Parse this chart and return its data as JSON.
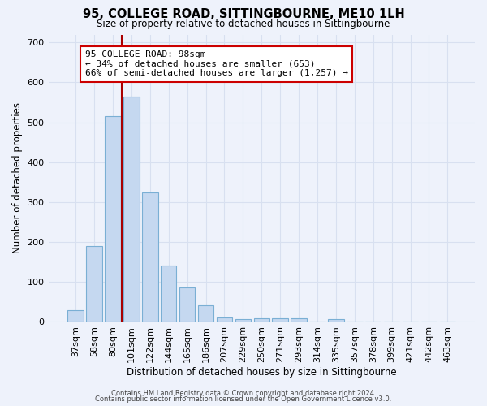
{
  "title": "95, COLLEGE ROAD, SITTINGBOURNE, ME10 1LH",
  "subtitle": "Size of property relative to detached houses in Sittingbourne",
  "xlabel": "Distribution of detached houses by size in Sittingbourne",
  "ylabel": "Number of detached properties",
  "bins": [
    "37sqm",
    "58sqm",
    "80sqm",
    "101sqm",
    "122sqm",
    "144sqm",
    "165sqm",
    "186sqm",
    "207sqm",
    "229sqm",
    "250sqm",
    "271sqm",
    "293sqm",
    "314sqm",
    "335sqm",
    "357sqm",
    "378sqm",
    "399sqm",
    "421sqm",
    "442sqm",
    "463sqm"
  ],
  "values": [
    30,
    190,
    515,
    565,
    325,
    142,
    87,
    42,
    12,
    8,
    9,
    9,
    9,
    0,
    7,
    0,
    0,
    0,
    0,
    0,
    0
  ],
  "bar_color": "#c5d8f0",
  "bar_edge_color": "#7aafd4",
  "red_line_color": "#aa0000",
  "red_line_x": 2.5,
  "annotation_title": "95 COLLEGE ROAD: 98sqm",
  "annotation_line1": "← 34% of detached houses are smaller (653)",
  "annotation_line2": "66% of semi-detached houses are larger (1,257) →",
  "annotation_box_facecolor": "#ffffff",
  "annotation_box_edgecolor": "#cc0000",
  "ylim": [
    0,
    720
  ],
  "yticks": [
    0,
    100,
    200,
    300,
    400,
    500,
    600,
    700
  ],
  "background_color": "#eef2fb",
  "grid_color": "#d8e0f0",
  "footer1": "Contains HM Land Registry data © Crown copyright and database right 2024.",
  "footer2": "Contains public sector information licensed under the Open Government Licence v3.0."
}
